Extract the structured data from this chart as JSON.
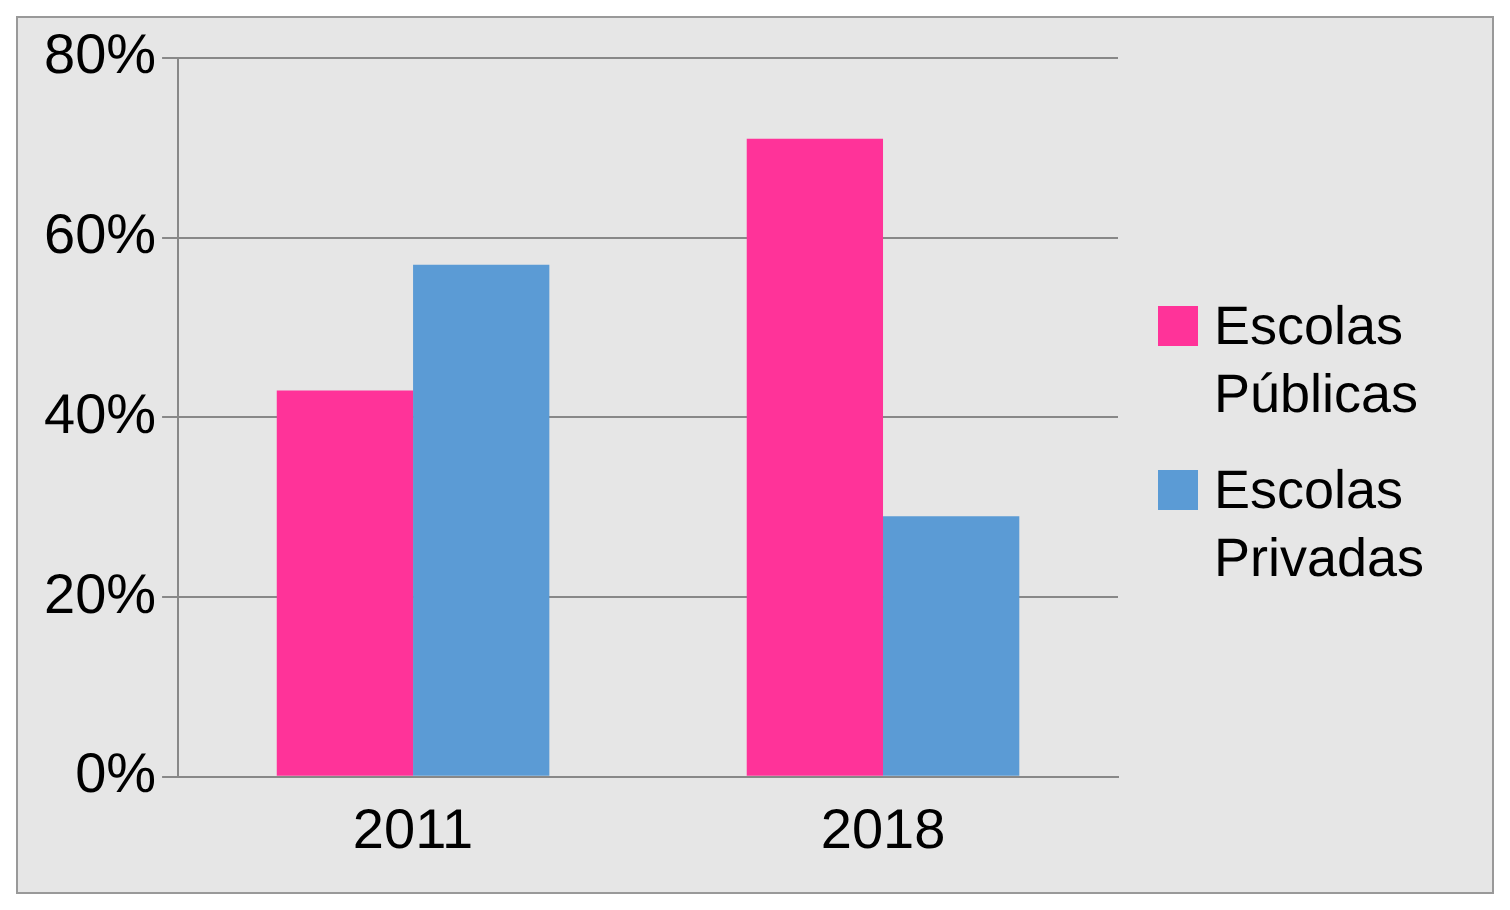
{
  "chart_data": {
    "type": "bar",
    "categories": [
      "2011",
      "2018"
    ],
    "series": [
      {
        "name": "Escolas Públicas",
        "color": "#ff3399",
        "values": [
          43,
          71
        ]
      },
      {
        "name": "Escolas Privadas",
        "color": "#5b9bd5",
        "values": [
          57,
          29
        ]
      }
    ],
    "ylim": [
      0,
      80
    ],
    "yticks": [
      {
        "value": 0,
        "label": "0%"
      },
      {
        "value": 20,
        "label": "20%"
      },
      {
        "value": 40,
        "label": "40%"
      },
      {
        "value": 60,
        "label": "60%"
      },
      {
        "value": 80,
        "label": "80%"
      }
    ],
    "grid": "y",
    "legend": "right"
  }
}
